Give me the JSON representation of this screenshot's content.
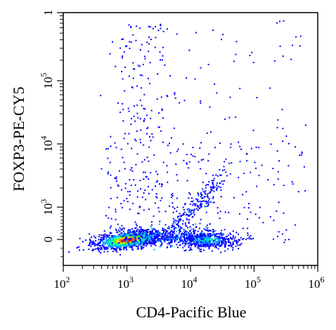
{
  "chart_data": {
    "type": "scatter",
    "title": "",
    "xlabel": "CD4-Pacific Blue",
    "ylabel": "FOXP3-PE-CY5",
    "x_scale": "log",
    "y_scale": "biexponential",
    "xlim": [
      100,
      1000000
    ],
    "ylim": [
      -300,
      1000000
    ],
    "x_ticks": [
      {
        "base": "10",
        "exp": "2",
        "value": 100
      },
      {
        "base": "10",
        "exp": "3",
        "value": 1000
      },
      {
        "base": "10",
        "exp": "4",
        "value": 10000
      },
      {
        "base": "10",
        "exp": "5",
        "value": 100000
      },
      {
        "base": "10",
        "exp": "6",
        "value": 1000000
      }
    ],
    "y_ticks": [
      {
        "label": "0",
        "base": "",
        "exp": "",
        "value": 0
      },
      {
        "label": "",
        "base": "10",
        "exp": "3",
        "value": 1000
      },
      {
        "label": "",
        "base": "10",
        "exp": "4",
        "value": 10000
      },
      {
        "label": "",
        "base": "10",
        "exp": "5",
        "value": 100000
      },
      {
        "label": "1",
        "base": "",
        "exp": "",
        "value": 1000000
      }
    ],
    "density_colormap": [
      "#0000ff",
      "#00a0ff",
      "#00e0c0",
      "#40ff40",
      "#e0e000",
      "#ff8000",
      "#ff0000"
    ],
    "populations": [
      {
        "x_center": 1000,
        "y_center": 0,
        "count": 1100,
        "peak": "red"
      },
      {
        "x_center": 18000,
        "y_center": 0,
        "count": 500,
        "peak": "cyan"
      },
      {
        "x_center": 1500,
        "y_center": 80000,
        "count": 180,
        "peak": "blue"
      },
      {
        "x_center": 30000,
        "y_center": 3000,
        "count": 220,
        "peak": "blue"
      },
      {
        "x_center": 20000,
        "y_center": 200000,
        "count": 90,
        "peak": "blue"
      }
    ],
    "grid": false,
    "legend": "none"
  }
}
